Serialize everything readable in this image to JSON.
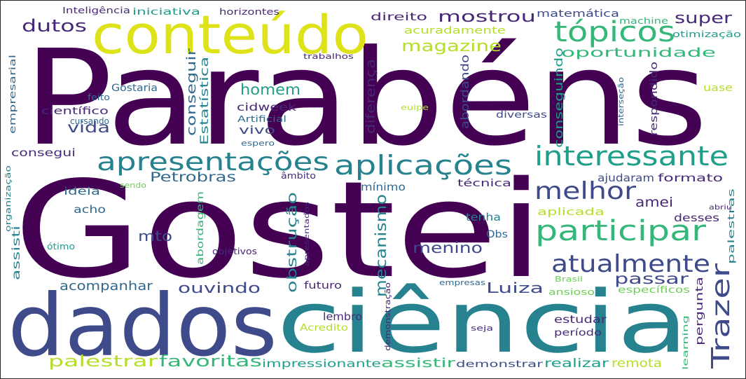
{
  "word_cloud": {
    "colors": {
      "dark_purple": "#440154",
      "purple": "#482878",
      "indigo": "#3e4a89",
      "blue": "#31688e",
      "teal": "#26828e",
      "teal_green": "#1f9e89",
      "green": "#35b779",
      "light_green": "#6ece58",
      "yellow_green": "#b5de2b",
      "yellow": "#dde318"
    },
    "words": [
      {
        "key": "parabens",
        "text": "Parabéns",
        "color": "#440154"
      },
      {
        "key": "gostei",
        "text": "Gostei",
        "color": "#440154"
      },
      {
        "key": "dados",
        "text": "dados",
        "color": "#3e4a89"
      },
      {
        "key": "ciencia",
        "text": "ciência",
        "color": "#26828e"
      },
      {
        "key": "conteudo",
        "text": "conteúdo",
        "color": "#dde318"
      },
      {
        "key": "topicos",
        "text": "tópicos",
        "color": "#35b779"
      },
      {
        "key": "apresentacoes",
        "text": "apresentações",
        "color": "#26828e"
      },
      {
        "key": "aplicacoes",
        "text": "aplicações",
        "color": "#26828e"
      },
      {
        "key": "interessante",
        "text": "interessante",
        "color": "#1f9e89"
      },
      {
        "key": "participar",
        "text": "participar",
        "color": "#35b779"
      },
      {
        "key": "melhor",
        "text": "melhor",
        "color": "#3e4a89"
      },
      {
        "key": "atualmente",
        "text": "atualmente",
        "color": "#3e4a89"
      },
      {
        "key": "trazer",
        "text": "Trazer",
        "color": "#3e4a89"
      },
      {
        "key": "mostrou",
        "text": "mostrou",
        "color": "#482878"
      },
      {
        "key": "super",
        "text": "super",
        "color": "#482878"
      },
      {
        "key": "dutos",
        "text": "dutos",
        "color": "#482878"
      },
      {
        "key": "magazine",
        "text": "magazine",
        "color": "#b5de2b"
      },
      {
        "key": "oportunidade",
        "text": "oportunidade",
        "color": "#35b779"
      },
      {
        "key": "direito",
        "text": "direito",
        "color": "#482878"
      },
      {
        "key": "acuradamente",
        "text": "acuradamente",
        "color": "#b5de2b"
      },
      {
        "key": "matematica",
        "text": "matemática",
        "color": "#3e4a89"
      },
      {
        "key": "machine",
        "text": "machine",
        "color": "#35b779"
      },
      {
        "key": "otimizacao",
        "text": "otimização",
        "color": "#1f9e89"
      },
      {
        "key": "inteligencia",
        "text": "Inteligência",
        "color": "#482878"
      },
      {
        "key": "iniciativa",
        "text": "iniciativa",
        "color": "#1f9e89"
      },
      {
        "key": "horizontes",
        "text": "horizontes",
        "color": "#482878"
      },
      {
        "key": "trabalhos",
        "text": "trabalhos",
        "color": "#482878"
      },
      {
        "key": "homem",
        "text": "homem",
        "color": "#1f9e89"
      },
      {
        "key": "cidweek",
        "text": "cidweek",
        "color": "#482878"
      },
      {
        "key": "vida",
        "text": "vida",
        "color": "#3e4a89"
      },
      {
        "key": "vivo",
        "text": "vivo",
        "color": "#3e4a89"
      },
      {
        "key": "gostaria",
        "text": "Gostaria",
        "color": "#31688e"
      },
      {
        "key": "feito",
        "text": "feito",
        "color": "#31688e"
      },
      {
        "key": "cientifico",
        "text": "científico",
        "color": "#482878"
      },
      {
        "key": "cursando",
        "text": "cursando",
        "color": "#31688e"
      },
      {
        "key": "artificial",
        "text": "Artificial",
        "color": "#31688e"
      },
      {
        "key": "espero",
        "text": "espero",
        "color": "#31688e"
      },
      {
        "key": "conseguir",
        "text": "conseguir",
        "color": "#31688e"
      },
      {
        "key": "estatistica",
        "text": "Estatística",
        "color": "#26828e"
      },
      {
        "key": "diferenca",
        "text": "diferença",
        "color": "#482878"
      },
      {
        "key": "abordando",
        "text": "abordando",
        "color": "#3e4a89"
      },
      {
        "key": "conseguindo",
        "text": "conseguindo",
        "color": "#1f9e89"
      },
      {
        "key": "respondido",
        "text": "respondido",
        "color": "#482878"
      },
      {
        "key": "interseccao",
        "text": "interseção",
        "color": "#31688e"
      },
      {
        "key": "uase",
        "text": "uase",
        "color": "#b5de2b"
      },
      {
        "key": "euipe",
        "text": "euipe",
        "color": "#b5de2b"
      },
      {
        "key": "diversas",
        "text": "diversas",
        "color": "#3e4a89"
      },
      {
        "key": "empresarial",
        "text": "empresarial",
        "color": "#31688e"
      },
      {
        "key": "consegui",
        "text": "consegui",
        "color": "#482878"
      },
      {
        "key": "petrobras",
        "text": "Petrobras",
        "color": "#31688e"
      },
      {
        "key": "ambito",
        "text": "âmbito",
        "color": "#482878"
      },
      {
        "key": "sendo",
        "text": "sendo",
        "color": "#6ece58"
      },
      {
        "key": "organizacao",
        "text": "organização",
        "color": "#26828e"
      },
      {
        "key": "ideia",
        "text": "ideia",
        "color": "#31688e"
      },
      {
        "key": "acho",
        "text": "acho",
        "color": "#31688e"
      },
      {
        "key": "minimo",
        "text": "mínimo",
        "color": "#31688e"
      },
      {
        "key": "tecnica",
        "text": "técnica",
        "color": "#482878"
      },
      {
        "key": "ajudaram",
        "text": "ajudaram",
        "color": "#3e4a89"
      },
      {
        "key": "formato",
        "text": "formato",
        "color": "#482878"
      },
      {
        "key": "amei",
        "text": "amei",
        "color": "#482878"
      },
      {
        "key": "abordagem",
        "text": "abordagem",
        "color": "#35b779"
      },
      {
        "key": "obstrucao",
        "text": "obstrução",
        "color": "#26828e"
      },
      {
        "key": "mecanismo",
        "text": "mecanismo",
        "color": "#26828e"
      },
      {
        "key": "aplicada",
        "text": "aplicada",
        "color": "#b5de2b"
      },
      {
        "key": "desses",
        "text": "desses",
        "color": "#482878"
      },
      {
        "key": "abriu",
        "text": "abriu",
        "color": "#482878"
      },
      {
        "key": "palestras",
        "text": "palestras",
        "color": "#26828e"
      },
      {
        "key": "mto",
        "text": "mto",
        "color": "#3e4a89"
      },
      {
        "key": "menino",
        "text": "menino",
        "color": "#3e4a89"
      },
      {
        "key": "tenha",
        "text": "tenha",
        "color": "#26828e"
      },
      {
        "key": "obs",
        "text": "Obs",
        "color": "#31688e"
      },
      {
        "key": "apresentados",
        "text": "apresentados",
        "color": "#482878"
      },
      {
        "key": "assisti",
        "text": "assisti",
        "color": "#26828e"
      },
      {
        "key": "otimo",
        "text": "ótimo",
        "color": "#1f9e89"
      },
      {
        "key": "objetivos",
        "text": "objetivos",
        "color": "#482878"
      },
      {
        "key": "passar",
        "text": "passar",
        "color": "#3e4a89"
      },
      {
        "key": "acompanhar",
        "text": "acompanhar",
        "color": "#31688e"
      },
      {
        "key": "ouvindo",
        "text": "ouvindo",
        "color": "#3e4a89"
      },
      {
        "key": "luiza",
        "text": "Luiza",
        "color": "#3e4a89"
      },
      {
        "key": "futuro",
        "text": "futuro",
        "color": "#482878"
      },
      {
        "key": "empresas",
        "text": "empresas",
        "color": "#31688e"
      },
      {
        "key": "brasil",
        "text": "Brasil",
        "color": "#6ece58"
      },
      {
        "key": "ansioso",
        "text": "ansioso",
        "color": "#6ece58"
      },
      {
        "key": "especificos",
        "text": "específicos",
        "color": "#6ece58"
      },
      {
        "key": "pergunta",
        "text": "pergunta",
        "color": "#482878"
      },
      {
        "key": "learning",
        "text": "learning",
        "color": "#35b779"
      },
      {
        "key": "lembro",
        "text": "lembro",
        "color": "#482878"
      },
      {
        "key": "demonstracao",
        "text": "demonstração",
        "color": "#482878"
      },
      {
        "key": "acredito",
        "text": "Acredito",
        "color": "#b5de2b"
      },
      {
        "key": "seja",
        "text": "seja",
        "color": "#482878"
      },
      {
        "key": "estudar",
        "text": "estudar",
        "color": "#482878"
      },
      {
        "key": "periodo",
        "text": "período",
        "color": "#482878"
      },
      {
        "key": "palestrar",
        "text": "palestrar",
        "color": "#b5de2b"
      },
      {
        "key": "favoritas",
        "text": "favoritas",
        "color": "#35b779"
      },
      {
        "key": "impressionante",
        "text": "impressionante",
        "color": "#1f9e89"
      },
      {
        "key": "assistir",
        "text": "assistir",
        "color": "#35b779"
      },
      {
        "key": "demonstrar",
        "text": "demonstrar",
        "color": "#3e4a89"
      },
      {
        "key": "realizar",
        "text": "realizar",
        "color": "#1f9e89"
      },
      {
        "key": "remota",
        "text": "remota",
        "color": "#b5de2b"
      }
    ]
  }
}
